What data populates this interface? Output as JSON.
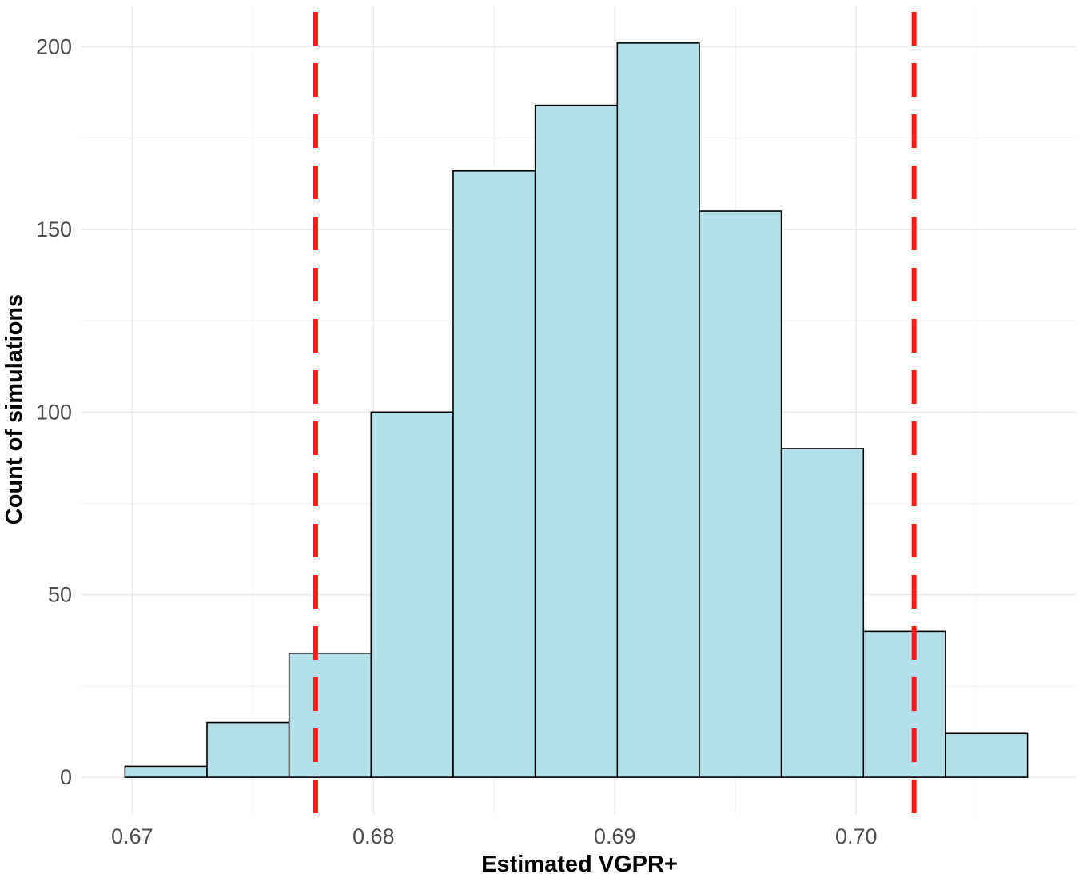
{
  "chart_data": {
    "type": "bar",
    "title": "",
    "xlabel": "Estimated VGPR+",
    "ylabel": "Count of simulations",
    "bins": [
      {
        "x0": 0.6697,
        "x1": 0.6731,
        "count": 3
      },
      {
        "x0": 0.6731,
        "x1": 0.6765,
        "count": 15
      },
      {
        "x0": 0.6765,
        "x1": 0.6799,
        "count": 34
      },
      {
        "x0": 0.6799,
        "x1": 0.6833,
        "count": 100
      },
      {
        "x0": 0.6833,
        "x1": 0.6867,
        "count": 166
      },
      {
        "x0": 0.6867,
        "x1": 0.6901,
        "count": 184
      },
      {
        "x0": 0.6901,
        "x1": 0.6935,
        "count": 201
      },
      {
        "x0": 0.6935,
        "x1": 0.6969,
        "count": 155
      },
      {
        "x0": 0.6969,
        "x1": 0.7003,
        "count": 90
      },
      {
        "x0": 0.7003,
        "x1": 0.7037,
        "count": 40
      },
      {
        "x0": 0.7037,
        "x1": 0.7071,
        "count": 12
      }
    ],
    "reference_lines": [
      0.6776,
      0.7024
    ],
    "xlim": [
      0.6679,
      0.7091
    ],
    "ylim": [
      -10.05,
      211.05
    ],
    "x_ticks": [
      "0.67",
      "0.68",
      "0.69",
      "0.70"
    ],
    "x_tick_values": [
      0.67,
      0.68,
      0.69,
      0.7
    ],
    "y_ticks": [
      "0",
      "50",
      "100",
      "150",
      "200"
    ],
    "y_tick_values": [
      0,
      50,
      100,
      150,
      200
    ],
    "grid": true,
    "legend": "none",
    "colors": {
      "bar_fill": "#b3dfe6",
      "bar_stroke": "#000000",
      "reference_line": "#ff1a1a",
      "grid": "#ebebeb"
    }
  }
}
